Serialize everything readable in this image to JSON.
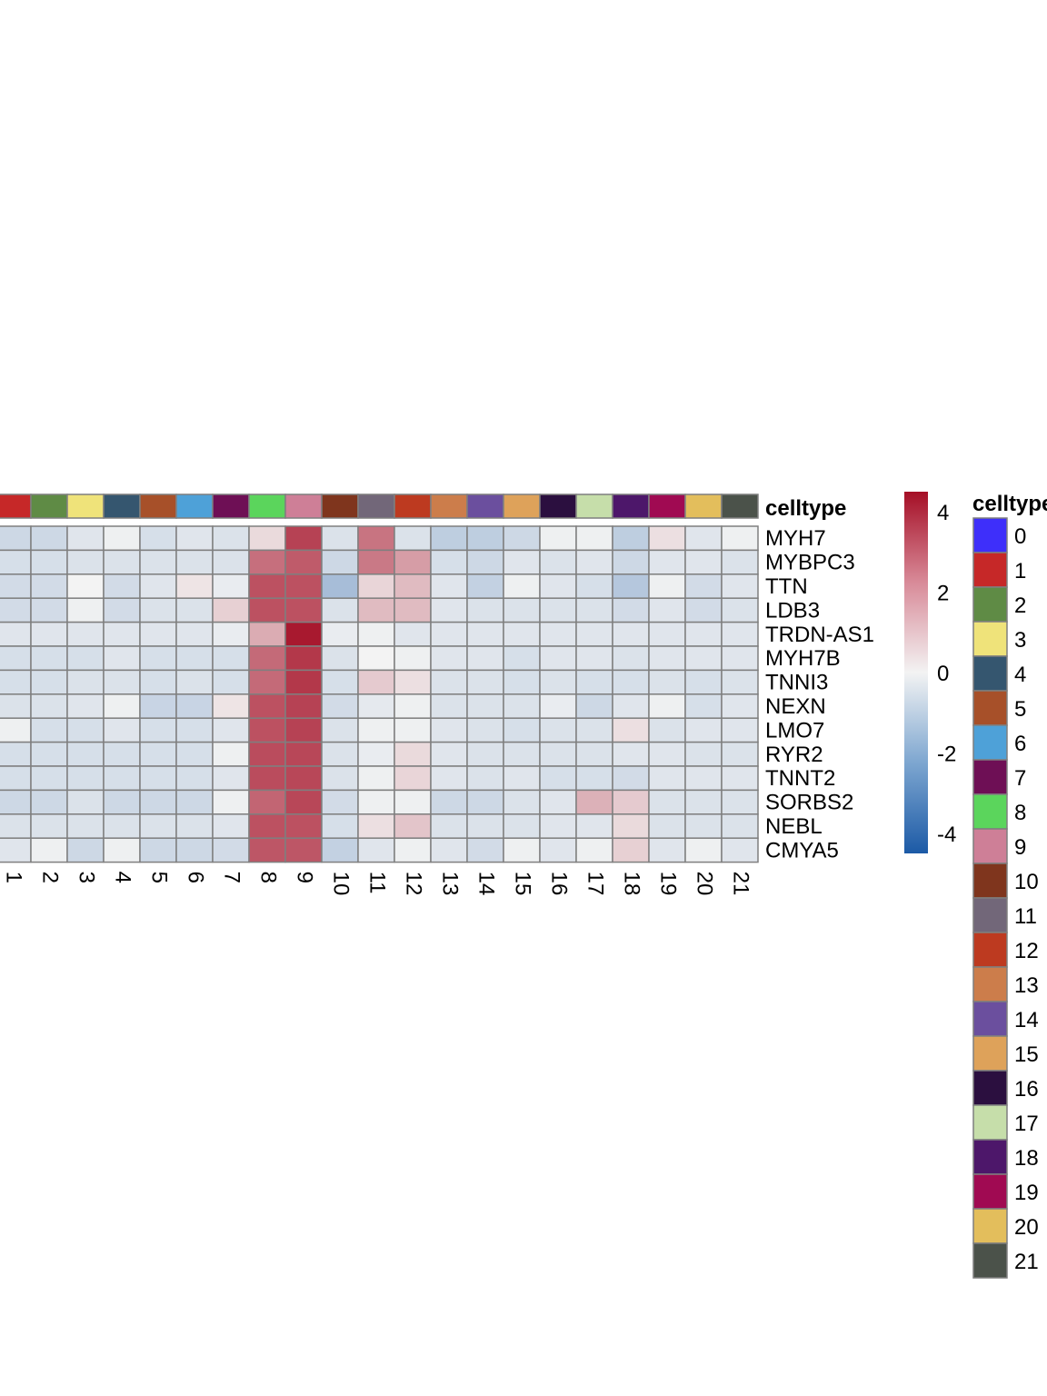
{
  "chart_data": {
    "type": "heatmap",
    "annotation_title": "celltype",
    "legend_title": "celltype",
    "columns": [
      "1",
      "2",
      "3",
      "4",
      "5",
      "6",
      "7",
      "8",
      "9",
      "10",
      "11",
      "12",
      "13",
      "14",
      "15",
      "16",
      "17",
      "18",
      "19",
      "20",
      "21"
    ],
    "rows": [
      "MYH7",
      "MYBPC3",
      "TTN",
      "LDB3",
      "TRDN-AS1",
      "MYH7B",
      "TNNI3",
      "NEXN",
      "LMO7",
      "RYR2",
      "TNNT2",
      "SORBS2",
      "NEBL",
      "CMYA5"
    ],
    "values": [
      [
        -0.8,
        -0.8,
        -0.4,
        -0.1,
        -0.6,
        -0.4,
        -0.5,
        0.5,
        3.5,
        -0.5,
        2.5,
        -0.5,
        -1.1,
        -1.1,
        -0.8,
        -0.1,
        -0.1,
        -1.1,
        0.4,
        -0.4,
        -0.1
      ],
      [
        -0.6,
        -0.6,
        -0.5,
        -0.5,
        -0.5,
        -0.5,
        -0.5,
        2.6,
        3.0,
        -0.8,
        2.4,
        1.7,
        -0.6,
        -0.8,
        -0.4,
        -0.5,
        -0.4,
        -0.8,
        -0.4,
        -0.4,
        -0.5
      ],
      [
        -0.7,
        -0.7,
        0.0,
        -0.7,
        -0.4,
        0.3,
        -0.2,
        3.2,
        3.2,
        -1.6,
        0.6,
        1.1,
        -0.4,
        -1.0,
        -0.1,
        -0.4,
        -0.6,
        -1.3,
        -0.1,
        -0.7,
        -0.4
      ],
      [
        -0.7,
        -0.7,
        -0.1,
        -0.7,
        -0.5,
        -0.5,
        0.7,
        3.2,
        3.2,
        -0.5,
        1.1,
        1.1,
        -0.4,
        -0.5,
        -0.5,
        -0.5,
        -0.5,
        -0.7,
        -0.4,
        -0.7,
        -0.5
      ],
      [
        -0.4,
        -0.4,
        -0.4,
        -0.4,
        -0.4,
        -0.4,
        -0.2,
        1.4,
        4.3,
        -0.2,
        -0.1,
        -0.4,
        -0.4,
        -0.4,
        -0.4,
        -0.4,
        -0.4,
        -0.4,
        -0.4,
        -0.4,
        -0.4
      ],
      [
        -0.6,
        -0.6,
        -0.6,
        -0.4,
        -0.6,
        -0.6,
        -0.6,
        2.7,
        3.7,
        -0.5,
        0.0,
        -0.1,
        -0.4,
        -0.4,
        -0.6,
        -0.4,
        -0.4,
        -0.5,
        -0.4,
        -0.4,
        -0.4
      ],
      [
        -0.6,
        -0.6,
        -0.5,
        -0.5,
        -0.6,
        -0.5,
        -0.6,
        2.7,
        3.7,
        -0.6,
        0.8,
        0.4,
        -0.5,
        -0.5,
        -0.6,
        -0.5,
        -0.6,
        -0.6,
        -0.5,
        -0.6,
        -0.5
      ],
      [
        -0.5,
        -0.5,
        -0.4,
        -0.1,
        -0.9,
        -0.9,
        0.3,
        3.2,
        3.5,
        -0.7,
        -0.3,
        -0.1,
        -0.5,
        -0.5,
        -0.5,
        -0.2,
        -0.8,
        -0.4,
        -0.1,
        -0.6,
        -0.4
      ],
      [
        -0.1,
        -0.6,
        -0.6,
        -0.4,
        -0.6,
        -0.6,
        -0.4,
        3.2,
        3.5,
        -0.5,
        -0.1,
        -0.1,
        -0.4,
        -0.5,
        -0.6,
        -0.5,
        -0.5,
        0.4,
        -0.5,
        -0.4,
        -0.4
      ],
      [
        -0.6,
        -0.6,
        -0.6,
        -0.6,
        -0.6,
        -0.6,
        -0.1,
        3.3,
        3.4,
        -0.5,
        -0.2,
        0.5,
        -0.4,
        -0.5,
        -0.5,
        -0.5,
        -0.5,
        -0.4,
        -0.4,
        -0.5,
        -0.5
      ],
      [
        -0.6,
        -0.6,
        -0.6,
        -0.6,
        -0.6,
        -0.6,
        -0.4,
        3.3,
        3.4,
        -0.5,
        -0.1,
        0.6,
        -0.4,
        -0.5,
        -0.4,
        -0.6,
        -0.6,
        -0.7,
        -0.4,
        -0.4,
        -0.4
      ],
      [
        -0.8,
        -0.8,
        -0.5,
        -0.8,
        -0.8,
        -0.8,
        -0.1,
        2.8,
        3.4,
        -0.7,
        -0.1,
        -0.1,
        -0.8,
        -0.8,
        -0.5,
        -0.4,
        1.3,
        0.8,
        -0.5,
        -0.5,
        -0.5
      ],
      [
        -0.5,
        -0.5,
        -0.5,
        -0.5,
        -0.5,
        -0.5,
        -0.4,
        3.2,
        3.2,
        -0.6,
        0.4,
        0.9,
        -0.5,
        -0.5,
        -0.5,
        -0.4,
        -0.4,
        0.5,
        -0.5,
        -0.5,
        -0.5
      ],
      [
        -0.4,
        -0.1,
        -0.8,
        -0.1,
        -0.8,
        -0.8,
        -0.7,
        3.1,
        3.1,
        -1.0,
        -0.4,
        -0.1,
        -0.4,
        -0.7,
        -0.1,
        -0.4,
        -0.1,
        0.7,
        -0.4,
        -0.1,
        -0.4
      ]
    ],
    "color_scale": {
      "ticks": [
        "4",
        "2",
        "0",
        "-2",
        "-4"
      ],
      "tick_values": [
        4,
        2,
        0,
        -2,
        -4
      ],
      "range": [
        -4.5,
        4.5
      ],
      "colors": [
        "#1c5aa6",
        "#f3f3f3",
        "#a50f26"
      ]
    },
    "celltype_legend": [
      {
        "label": "0",
        "color": "#3e2ffa"
      },
      {
        "label": "1",
        "color": "#c62828"
      },
      {
        "label": "2",
        "color": "#5f8b45"
      },
      {
        "label": "3",
        "color": "#efe37a"
      },
      {
        "label": "4",
        "color": "#35566f"
      },
      {
        "label": "5",
        "color": "#a75029"
      },
      {
        "label": "6",
        "color": "#4ea1d8"
      },
      {
        "label": "7",
        "color": "#6e0f55"
      },
      {
        "label": "8",
        "color": "#5bd55c"
      },
      {
        "label": "9",
        "color": "#ce7f97"
      },
      {
        "label": "10",
        "color": "#7f351d"
      },
      {
        "label": "11",
        "color": "#726779"
      },
      {
        "label": "12",
        "color": "#bd3a20"
      },
      {
        "label": "13",
        "color": "#cc7d4b"
      },
      {
        "label": "14",
        "color": "#6b4f9e"
      },
      {
        "label": "15",
        "color": "#dea25a"
      },
      {
        "label": "16",
        "color": "#2b0f3f"
      },
      {
        "label": "17",
        "color": "#c6deaa"
      },
      {
        "label": "18",
        "color": "#4d176a"
      },
      {
        "label": "19",
        "color": "#a00a52"
      },
      {
        "label": "20",
        "color": "#e3be5c"
      },
      {
        "label": "21",
        "color": "#4b524a"
      }
    ]
  }
}
